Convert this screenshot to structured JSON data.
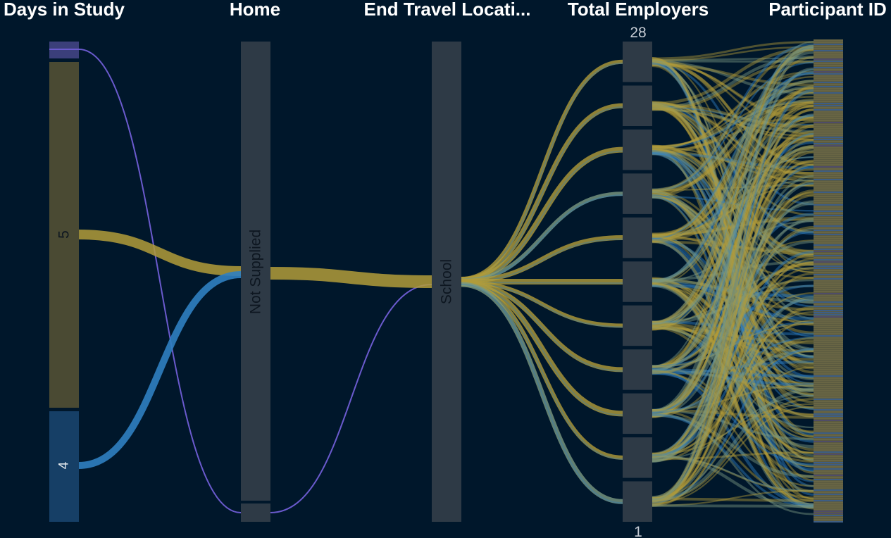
{
  "chart_data": {
    "type": "parallel-categories",
    "background": "#00172b",
    "dimensions": [
      {
        "key": "days",
        "title": "Days in Study",
        "categories": [
          {
            "label": "",
            "color": "#3b3f7a"
          },
          {
            "label": "5",
            "color": "#4a4a33"
          },
          {
            "label": "4",
            "color": "#163f66"
          }
        ]
      },
      {
        "key": "home",
        "title": "Home",
        "categories": [
          {
            "label": "Not Supplied",
            "color": "#2e3a46"
          },
          {
            "label": "",
            "color": "#2e3a46"
          }
        ]
      },
      {
        "key": "end",
        "title": "End Travel Locati...",
        "categories": [
          {
            "label": "School",
            "color": "#2e3a46"
          }
        ]
      },
      {
        "key": "employers",
        "title": "Total Employers",
        "range_max": "28",
        "range_min": "1",
        "segment_count": 11,
        "color": "#2e3a46"
      },
      {
        "key": "participant",
        "title": "Participant ID",
        "color": "#5a5a40"
      }
    ],
    "flows": [
      {
        "from_dim": "days",
        "from_cat": "",
        "to_dim": "home",
        "to_cat": "",
        "color": "#6a5acd"
      },
      {
        "from_dim": "home",
        "from_cat": "",
        "to_dim": "end",
        "to_cat": "School",
        "color": "#6a5acd"
      },
      {
        "from_dim": "days",
        "from_cat": "5",
        "to_dim": "home",
        "to_cat": "Not Supplied",
        "color": "#b29c3a"
      },
      {
        "from_dim": "days",
        "from_cat": "4",
        "to_dim": "home",
        "to_cat": "Not Supplied",
        "color": "#2f7fc1"
      },
      {
        "from_dim": "home",
        "from_cat": "Not Supplied",
        "to_dim": "end",
        "to_cat": "School",
        "color": "#b29c3a"
      }
    ],
    "series_colors": {
      "five_days": "#b29c3a",
      "four_days": "#2f7fc1",
      "other": "#6a5acd",
      "mixed": "#7a9a82"
    }
  }
}
